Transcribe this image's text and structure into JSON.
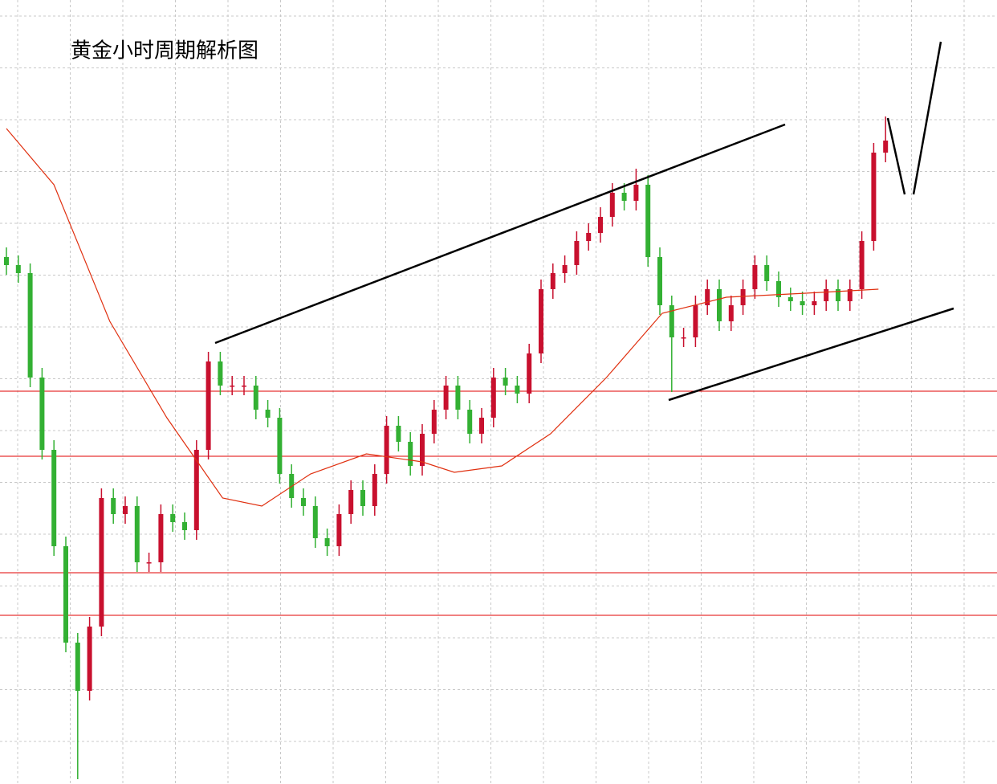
{
  "chart_data": {
    "type": "candlestick",
    "title": "黄金小时周期解析图",
    "ylim": [
      0,
      976
    ],
    "up_color": "#c8102e",
    "down_color": "#33b033",
    "level_color": "#e00000",
    "ma_color": "#e03010",
    "open": [
      656,
      646,
      636,
      506,
      416,
      296,
      176,
      116,
      196,
      356,
      336,
      346,
      276,
      276,
      336,
      326,
      316,
      416,
      526,
      496,
      496,
      496,
      466,
      456,
      386,
      356,
      346,
      306,
      296,
      336,
      366,
      346,
      386,
      446,
      426,
      396,
      436,
      466,
      496,
      466,
      436,
      456,
      506,
      496,
      486,
      536,
      616,
      636,
      646,
      676,
      686,
      706,
      736,
      726,
      746,
      656,
      596,
      556,
      556,
      596,
      616,
      576,
      596,
      616,
      646,
      626,
      606,
      601,
      596,
      601,
      616,
      601,
      616,
      676,
      786
    ],
    "high": [
      668,
      658,
      648,
      518,
      428,
      308,
      188,
      208,
      368,
      368,
      358,
      358,
      288,
      348,
      348,
      338,
      428,
      538,
      538,
      508,
      508,
      508,
      478,
      468,
      398,
      368,
      358,
      318,
      348,
      378,
      378,
      398,
      458,
      458,
      438,
      448,
      478,
      508,
      508,
      478,
      468,
      518,
      518,
      508,
      548,
      628,
      648,
      658,
      688,
      698,
      718,
      748,
      748,
      766,
      758,
      668,
      608,
      568,
      608,
      628,
      628,
      608,
      628,
      658,
      658,
      638,
      618,
      613,
      613,
      628,
      628,
      628,
      688,
      798,
      831
    ],
    "low": [
      634,
      624,
      494,
      404,
      284,
      164,
      6,
      104,
      184,
      324,
      324,
      264,
      264,
      264,
      314,
      304,
      304,
      404,
      484,
      484,
      484,
      454,
      444,
      374,
      344,
      334,
      294,
      284,
      284,
      324,
      334,
      334,
      374,
      414,
      384,
      384,
      424,
      454,
      454,
      424,
      424,
      444,
      484,
      474,
      474,
      524,
      604,
      624,
      634,
      664,
      674,
      694,
      714,
      714,
      644,
      584,
      488,
      544,
      544,
      584,
      564,
      564,
      584,
      604,
      614,
      594,
      589,
      584,
      584,
      589,
      589,
      589,
      604,
      664,
      774
    ],
    "close": [
      646,
      636,
      506,
      416,
      296,
      176,
      116,
      196,
      356,
      336,
      346,
      276,
      276,
      336,
      326,
      316,
      416,
      526,
      496,
      496,
      496,
      466,
      456,
      386,
      356,
      346,
      306,
      296,
      336,
      366,
      346,
      386,
      446,
      426,
      396,
      436,
      466,
      496,
      466,
      436,
      456,
      506,
      496,
      486,
      536,
      616,
      636,
      646,
      676,
      686,
      706,
      736,
      726,
      746,
      656,
      596,
      556,
      556,
      596,
      616,
      576,
      596,
      616,
      646,
      626,
      606,
      601,
      596,
      601,
      616,
      601,
      616,
      676,
      786,
      801
    ],
    "ma_x": [
      0,
      4,
      8.7,
      13.5,
      18.2,
      21.5,
      25.6,
      30.3,
      35,
      37.7,
      41.7,
      45.8,
      50.5,
      55.2,
      60.6,
      67.3,
      73.4
    ],
    "ma_values": [
      816,
      746,
      576,
      456,
      356,
      346,
      386,
      411,
      401,
      388,
      396,
      436,
      506,
      586,
      606,
      611,
      616
    ],
    "levels": [
      489,
      408,
      263,
      210
    ]
  }
}
